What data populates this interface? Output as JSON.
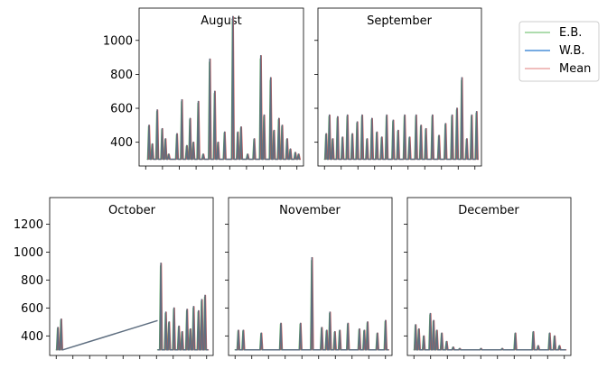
{
  "chart_data": {
    "type": "line",
    "sharey_rows": true,
    "colors": {
      "eb": "#5cb85c",
      "wb": "#4a8fd8",
      "mean": "#d9534f",
      "overlap": "#5e6e80"
    },
    "legend": {
      "placement": "top-right",
      "entries": [
        {
          "name": "E.B.",
          "color": "#5cb85c"
        },
        {
          "name": "W.B.",
          "color": "#4a8fd8"
        },
        {
          "name": "Mean",
          "color": "#d9534f"
        }
      ]
    },
    "rows": [
      {
        "ylim": [
          260,
          1190
        ],
        "yticks": [
          400,
          600,
          800,
          1000
        ],
        "ytick_labels": [
          "400",
          "600",
          "800",
          "1000"
        ]
      },
      {
        "ylim": [
          260,
          1390
        ],
        "yticks": [
          400,
          600,
          800,
          1000,
          1200
        ],
        "ytick_labels": [
          "400",
          "600",
          "800",
          "1000",
          "1200"
        ]
      }
    ],
    "panels": [
      {
        "title": "August",
        "row": 0,
        "show_yticks": true,
        "baseline": 300,
        "xticks": 10,
        "segments": [
          {
            "x0": 0.05,
            "x1": 0.98,
            "peaks": [
              [
                0.06,
                500
              ],
              [
                0.08,
                390
              ],
              [
                0.11,
                590
              ],
              [
                0.14,
                480
              ],
              [
                0.16,
                420
              ],
              [
                0.18,
                330
              ],
              [
                0.23,
                450
              ],
              [
                0.26,
                650
              ],
              [
                0.29,
                380
              ],
              [
                0.31,
                540
              ],
              [
                0.33,
                400
              ],
              [
                0.36,
                640
              ],
              [
                0.39,
                330
              ],
              [
                0.43,
                890
              ],
              [
                0.46,
                700
              ],
              [
                0.48,
                400
              ],
              [
                0.52,
                460
              ],
              [
                0.57,
                1140
              ],
              [
                0.6,
                460
              ],
              [
                0.62,
                490
              ],
              [
                0.66,
                330
              ],
              [
                0.7,
                420
              ],
              [
                0.74,
                910
              ],
              [
                0.76,
                560
              ],
              [
                0.8,
                780
              ],
              [
                0.82,
                470
              ],
              [
                0.85,
                540
              ],
              [
                0.87,
                500
              ],
              [
                0.9,
                420
              ],
              [
                0.92,
                360
              ],
              [
                0.95,
                340
              ],
              [
                0.97,
                330
              ]
            ]
          }
        ]
      },
      {
        "title": "September",
        "row": 0,
        "show_yticks": false,
        "baseline": 300,
        "xticks": 10,
        "segments": [
          {
            "x0": 0.04,
            "x1": 0.98,
            "peaks": [
              [
                0.05,
                450
              ],
              [
                0.07,
                560
              ],
              [
                0.09,
                420
              ],
              [
                0.12,
                550
              ],
              [
                0.15,
                430
              ],
              [
                0.18,
                560
              ],
              [
                0.21,
                450
              ],
              [
                0.24,
                520
              ],
              [
                0.27,
                560
              ],
              [
                0.3,
                420
              ],
              [
                0.33,
                540
              ],
              [
                0.36,
                460
              ],
              [
                0.39,
                430
              ],
              [
                0.42,
                560
              ],
              [
                0.46,
                530
              ],
              [
                0.49,
                470
              ],
              [
                0.53,
                560
              ],
              [
                0.56,
                430
              ],
              [
                0.6,
                560
              ],
              [
                0.63,
                500
              ],
              [
                0.66,
                480
              ],
              [
                0.7,
                560
              ],
              [
                0.74,
                440
              ],
              [
                0.78,
                510
              ],
              [
                0.82,
                560
              ],
              [
                0.85,
                600
              ],
              [
                0.88,
                780
              ],
              [
                0.91,
                420
              ],
              [
                0.94,
                560
              ],
              [
                0.97,
                580
              ]
            ]
          }
        ]
      },
      {
        "title": "October",
        "row": 1,
        "show_yticks": true,
        "baseline": 300,
        "xticks": 10,
        "segments": [
          {
            "x0": 0.04,
            "x1": 0.08,
            "peaks": [
              [
                0.05,
                460
              ],
              [
                0.07,
                520
              ]
            ]
          },
          {
            "x0": 0.66,
            "x1": 0.97,
            "peaks": [
              [
                0.68,
                920
              ],
              [
                0.71,
                570
              ],
              [
                0.73,
                500
              ],
              [
                0.76,
                600
              ],
              [
                0.79,
                470
              ],
              [
                0.81,
                430
              ],
              [
                0.84,
                590
              ],
              [
                0.86,
                450
              ],
              [
                0.88,
                610
              ],
              [
                0.91,
                580
              ],
              [
                0.93,
                660
              ],
              [
                0.95,
                690
              ]
            ]
          }
        ],
        "gap_line": {
          "x0": 0.08,
          "y0": 300,
          "x1": 0.66,
          "y1": 510
        }
      },
      {
        "title": "November",
        "row": 1,
        "show_yticks": false,
        "baseline": 300,
        "xticks": 10,
        "segments": [
          {
            "x0": 0.04,
            "x1": 0.98,
            "peaks": [
              [
                0.06,
                440
              ],
              [
                0.09,
                440
              ],
              [
                0.2,
                420
              ],
              [
                0.32,
                490
              ],
              [
                0.44,
                490
              ],
              [
                0.51,
                960
              ],
              [
                0.57,
                460
              ],
              [
                0.6,
                440
              ],
              [
                0.62,
                570
              ],
              [
                0.65,
                430
              ],
              [
                0.68,
                440
              ],
              [
                0.73,
                490
              ],
              [
                0.8,
                450
              ],
              [
                0.83,
                440
              ],
              [
                0.85,
                500
              ],
              [
                0.91,
                420
              ],
              [
                0.96,
                510
              ]
            ]
          }
        ]
      },
      {
        "title": "December",
        "row": 1,
        "show_yticks": false,
        "baseline": 300,
        "xticks": 10,
        "segments": [
          {
            "x0": 0.04,
            "x1": 0.97,
            "peaks": [
              [
                0.05,
                480
              ],
              [
                0.07,
                450
              ],
              [
                0.1,
                400
              ],
              [
                0.14,
                560
              ],
              [
                0.16,
                510
              ],
              [
                0.18,
                440
              ],
              [
                0.21,
                420
              ],
              [
                0.24,
                360
              ],
              [
                0.28,
                320
              ],
              [
                0.32,
                310
              ],
              [
                0.45,
                310
              ],
              [
                0.58,
                310
              ],
              [
                0.66,
                420
              ],
              [
                0.77,
                430
              ],
              [
                0.8,
                330
              ],
              [
                0.87,
                420
              ],
              [
                0.9,
                400
              ],
              [
                0.93,
                330
              ]
            ]
          }
        ]
      }
    ]
  }
}
